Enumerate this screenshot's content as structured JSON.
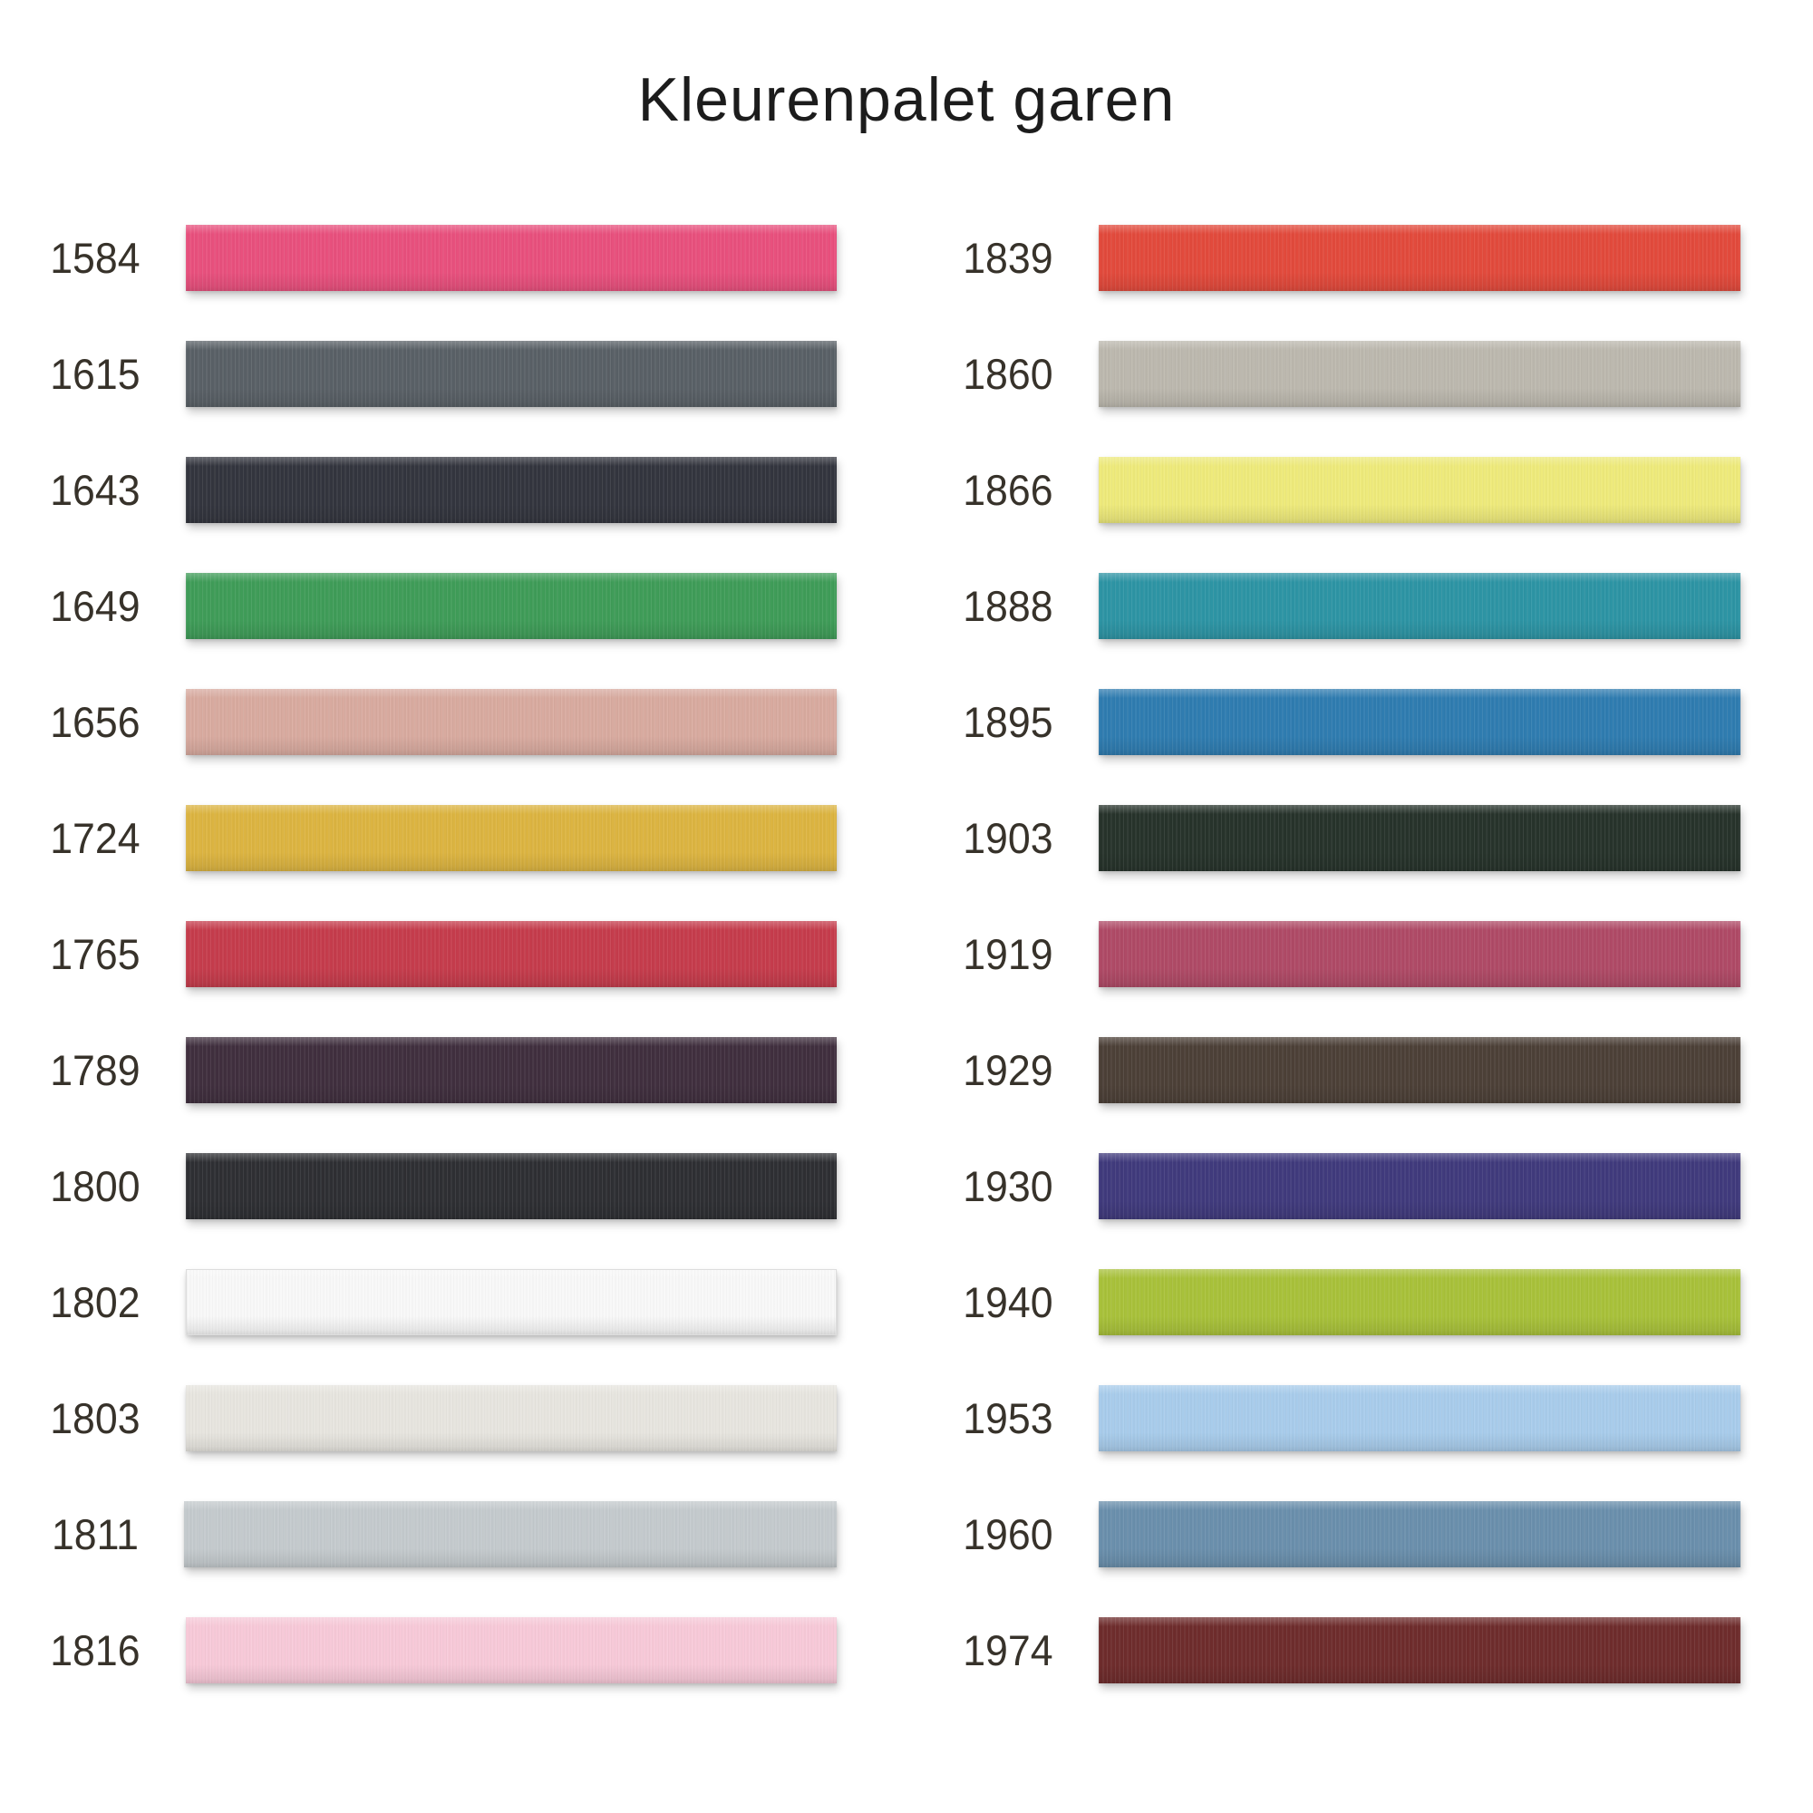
{
  "title": "Kleurenpalet garen",
  "colors": {
    "background": "#ffffff",
    "title_text": "#1c1c1c",
    "label_text": "#37322a"
  },
  "palette": {
    "left": [
      {
        "code": "1584",
        "color": "#e8507d"
      },
      {
        "code": "1615",
        "color": "#596066"
      },
      {
        "code": "1643",
        "color": "#33353e"
      },
      {
        "code": "1649",
        "color": "#3f9c58"
      },
      {
        "code": "1656",
        "color": "#d8aa9f"
      },
      {
        "code": "1724",
        "color": "#dcb441"
      },
      {
        "code": "1765",
        "color": "#c53c4c"
      },
      {
        "code": "1789",
        "color": "#402f3e"
      },
      {
        "code": "1800",
        "color": "#2e2f33"
      },
      {
        "code": "1802",
        "color": "#f8f8f8",
        "border": "#dddddd"
      },
      {
        "code": "1803",
        "color": "#e7e5df"
      },
      {
        "code": "1811",
        "color": "#c4cacd"
      },
      {
        "code": "1816",
        "color": "#f7c9d8"
      }
    ],
    "right": [
      {
        "code": "1839",
        "color": "#e24a3c"
      },
      {
        "code": "1860",
        "color": "#bcb8ae"
      },
      {
        "code": "1866",
        "color": "#eeea7b"
      },
      {
        "code": "1888",
        "color": "#2d94a4"
      },
      {
        "code": "1895",
        "color": "#2f7cb0"
      },
      {
        "code": "1903",
        "color": "#27332b"
      },
      {
        "code": "1919",
        "color": "#af4a66"
      },
      {
        "code": "1929",
        "color": "#4c4037"
      },
      {
        "code": "1930",
        "color": "#403a7c"
      },
      {
        "code": "1940",
        "color": "#a8c13a"
      },
      {
        "code": "1953",
        "color": "#a8cceb"
      },
      {
        "code": "1960",
        "color": "#6a8fac"
      },
      {
        "code": "1974",
        "color": "#6e2c2c"
      }
    ]
  }
}
